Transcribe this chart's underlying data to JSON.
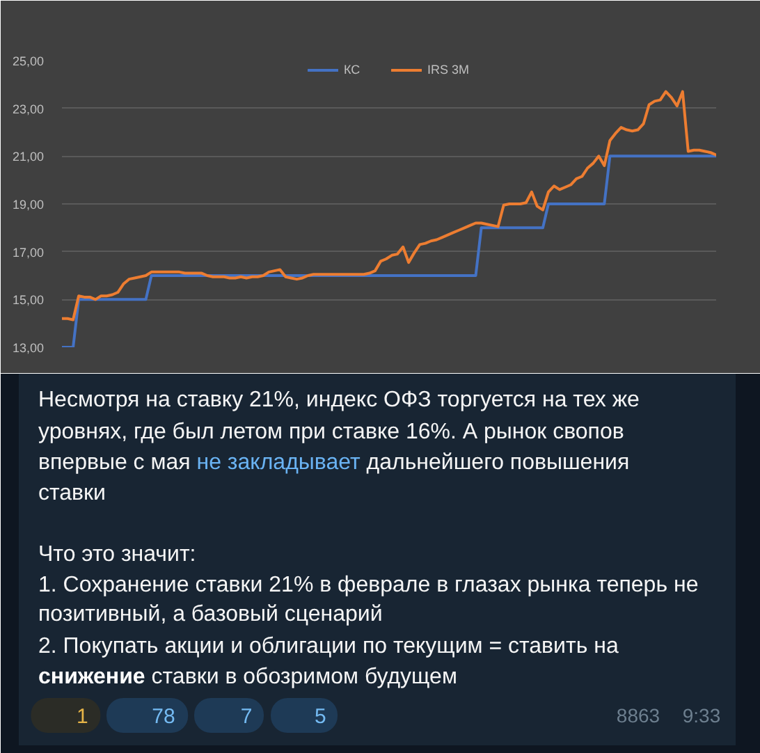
{
  "chart_data": {
    "type": "line",
    "categories": [
      null,
      null,
      null,
      null,
      null,
      null,
      null,
      null,
      null,
      null,
      null,
      null,
      null,
      null,
      null,
      null,
      null,
      null,
      null,
      null,
      null,
      null,
      null,
      null,
      null,
      null,
      null,
      null,
      null,
      null,
      null,
      null,
      null,
      null,
      null,
      null,
      null,
      null,
      null,
      null,
      null,
      null,
      null,
      null,
      null,
      null,
      null,
      null,
      null,
      null,
      null,
      null,
      null,
      null,
      null,
      null,
      null,
      null,
      null,
      null,
      null,
      null,
      null,
      null,
      null,
      null,
      null,
      null,
      null,
      null,
      null,
      null,
      null,
      null,
      null,
      null,
      null,
      null,
      null,
      null,
      null,
      null,
      null,
      null,
      null,
      null,
      null,
      null,
      null,
      null,
      null,
      null,
      null,
      null,
      null,
      null,
      null,
      null,
      null,
      null,
      null,
      null,
      null,
      null,
      null,
      null,
      null,
      null,
      null,
      null,
      null,
      null,
      null,
      null,
      null,
      null,
      null,
      null
    ],
    "series": [
      {
        "name": "КС",
        "color": "#4472c4",
        "values": [
          13,
          13,
          13,
          15,
          15,
          15,
          15,
          15,
          15,
          15,
          15,
          15,
          15,
          15,
          15,
          15,
          16,
          16,
          16,
          16,
          16,
          16,
          16,
          16,
          16,
          16,
          16,
          16,
          16,
          16,
          16,
          16,
          16,
          16,
          16,
          16,
          16,
          16,
          16,
          16,
          16,
          16,
          16,
          16,
          16,
          16,
          16,
          16,
          16,
          16,
          16,
          16,
          16,
          16,
          16,
          16,
          16,
          16,
          16,
          16,
          16,
          16,
          16,
          16,
          16,
          16,
          16,
          16,
          16,
          16,
          16,
          16,
          16,
          16,
          16,
          18,
          18,
          18,
          18,
          18,
          18,
          18,
          18,
          18,
          18,
          18,
          18,
          19,
          19,
          19,
          19,
          19,
          19,
          19,
          19,
          19,
          19,
          19,
          21,
          21,
          21,
          21,
          21,
          21,
          21,
          21,
          21,
          21,
          21,
          21,
          21,
          21,
          21,
          21,
          21,
          21,
          21,
          21
        ]
      },
      {
        "name": "IRS 3M",
        "color": "#ed7d31",
        "values": [
          14.2,
          14.2,
          14.15,
          15.15,
          15.1,
          15.1,
          15.0,
          15.15,
          15.15,
          15.2,
          15.3,
          15.65,
          15.85,
          15.9,
          15.95,
          16.0,
          16.15,
          16.15,
          16.15,
          16.15,
          16.15,
          16.15,
          16.1,
          16.1,
          16.1,
          16.1,
          16.0,
          15.95,
          15.95,
          15.95,
          15.9,
          15.9,
          15.95,
          15.9,
          15.95,
          15.95,
          16.0,
          16.15,
          16.2,
          16.25,
          15.95,
          15.9,
          15.85,
          15.9,
          16.0,
          16.05,
          16.05,
          16.05,
          16.05,
          16.05,
          16.05,
          16.05,
          16.05,
          16.05,
          16.05,
          16.1,
          16.2,
          16.6,
          16.7,
          16.85,
          16.9,
          17.2,
          16.55,
          16.95,
          17.3,
          17.35,
          17.45,
          17.5,
          17.6,
          17.7,
          17.8,
          17.9,
          18.0,
          18.1,
          18.2,
          18.2,
          18.15,
          18.1,
          18.05,
          18.95,
          19.0,
          19.0,
          19.0,
          19.05,
          19.5,
          18.9,
          18.75,
          19.5,
          19.75,
          19.6,
          19.7,
          19.8,
          20.05,
          20.15,
          20.5,
          20.7,
          21.0,
          20.6,
          21.65,
          21.95,
          22.2,
          22.1,
          22.05,
          22.1,
          22.35,
          23.15,
          23.3,
          23.35,
          23.7,
          23.45,
          23.1,
          23.7,
          21.2,
          21.25,
          21.25,
          21.2,
          21.15,
          21.05
        ]
      }
    ],
    "ylim": [
      13,
      25
    ],
    "yticks": [
      {
        "value": 13,
        "label": "13,00"
      },
      {
        "value": 15,
        "label": "15,00"
      },
      {
        "value": 17,
        "label": "17,00"
      },
      {
        "value": 19,
        "label": "19,00"
      },
      {
        "value": 21,
        "label": "21,00"
      },
      {
        "value": 23,
        "label": "23,00"
      },
      {
        "value": 25,
        "label": "25,00"
      }
    ],
    "grid": "y",
    "legend": "top",
    "tick_labels": "y",
    "annotations": [
      "Несмотря на ставку 21%, индекс ОФЗ торгуется на тех же",
      "уровнях, где был летом при ставке 16%. А рынок свопов",
      "впервые с мая",
      "не закладывает",
      "дальнейшего повышения",
      "ставки",
      "Что это значит:",
      "1. Сохранение ставки 21% в феврале в глазах рынка теперь не",
      "позитивный, а базовый сценарий",
      "2. Покупать акции и облигации по текущим = ставить на",
      "снижение",
      "ставки в обозримом будущем",
      "1",
      "78",
      "7",
      "5",
      "8863",
      "9:33"
    ]
  }
}
